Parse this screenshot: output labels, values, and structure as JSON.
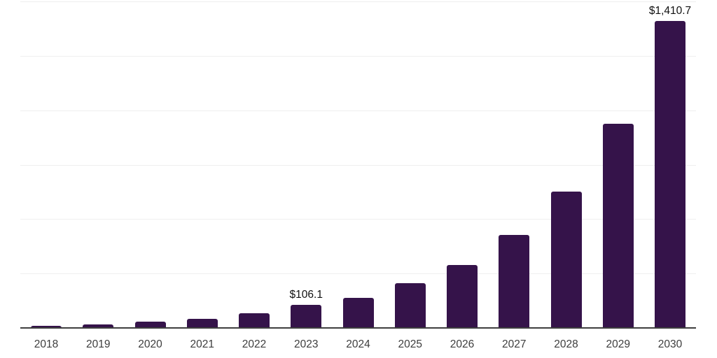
{
  "chart_data": {
    "type": "bar",
    "categories": [
      "2018",
      "2019",
      "2020",
      "2021",
      "2022",
      "2023",
      "2024",
      "2025",
      "2026",
      "2027",
      "2028",
      "2029",
      "2030"
    ],
    "values": [
      10.6,
      16.0,
      28.8,
      41.6,
      68.2,
      106.1,
      138.6,
      205.8,
      288.1,
      425.7,
      625.2,
      937.9,
      1410.7
    ],
    "data_labels": [
      "",
      "",
      "",
      "",
      "",
      "$106.1",
      "",
      "",
      "",
      "",
      "",
      "",
      "$1,410.7"
    ],
    "ylim": [
      0,
      1500
    ],
    "gridline_values": [
      250,
      500,
      750,
      1000,
      1250,
      1500
    ],
    "grid": true,
    "legend": "none",
    "colors": {
      "bar": "#35134a",
      "axis": "#3f3f3f",
      "gridline": "#efefef",
      "tick_label": "#3d3d3d",
      "data_label": "#111111",
      "background": "#ffffff"
    }
  }
}
